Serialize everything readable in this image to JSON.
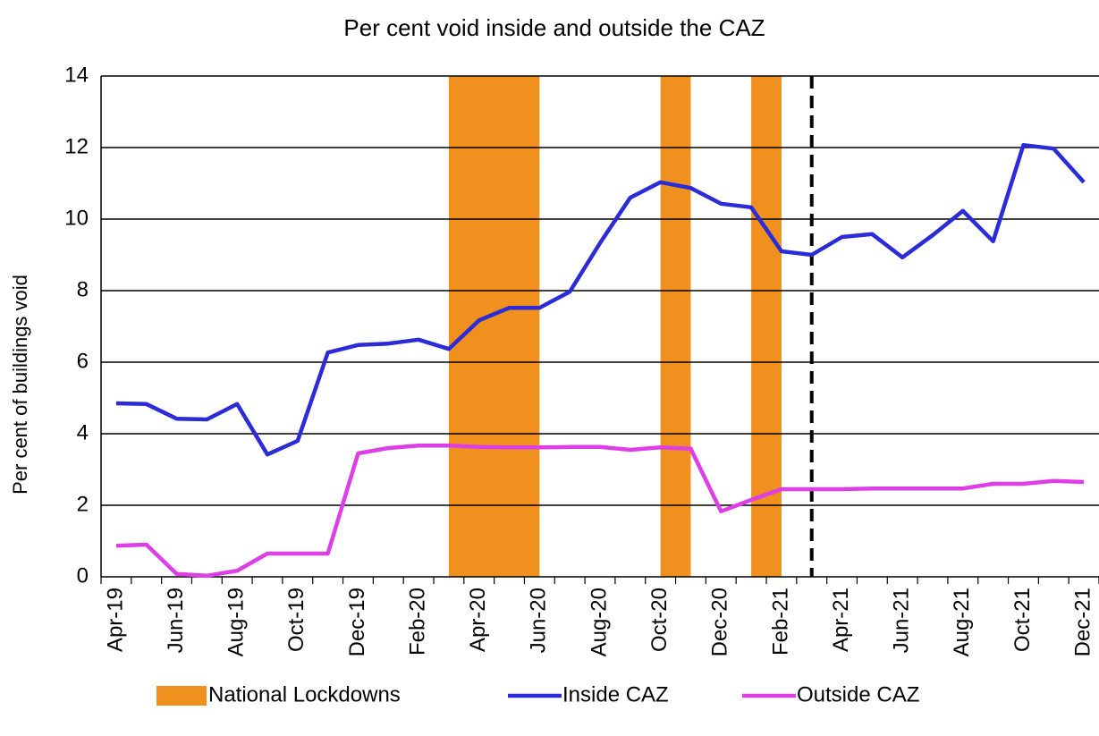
{
  "chart_data": {
    "type": "line",
    "title": "Per cent void inside and outside the CAZ",
    "y_label": "Per cent of buildings void",
    "categories": [
      "Apr-19",
      null,
      "Jun-19",
      null,
      "Aug-19",
      null,
      "Oct-19",
      null,
      "Dec-19",
      null,
      "Feb-20",
      null,
      "Apr-20",
      null,
      "Jun-20",
      null,
      "Aug-20",
      null,
      "Oct-20",
      null,
      "Dec-20",
      null,
      "Feb-21",
      null,
      "Apr-21",
      null,
      "Jun-21",
      null,
      "Aug-21",
      null,
      "Oct-21",
      null,
      "Dec-21"
    ],
    "series": [
      {
        "name": "Inside CAZ",
        "color": "#2b2bd8",
        "values": [
          4.85,
          4.83,
          4.42,
          4.4,
          4.83,
          3.42,
          3.8,
          6.27,
          6.48,
          6.52,
          6.63,
          6.37,
          7.17,
          7.52,
          7.52,
          7.97,
          9.33,
          10.6,
          11.03,
          10.87,
          10.43,
          10.33,
          9.1,
          9.0,
          9.5,
          9.58,
          8.93,
          9.55,
          10.23,
          9.38,
          12.07,
          11.97,
          11.03
        ]
      },
      {
        "name": "Outside CAZ",
        "color": "#dd3ee6",
        "values": [
          0.87,
          0.9,
          0.08,
          0.03,
          0.17,
          0.65,
          0.65,
          0.65,
          3.45,
          3.6,
          3.67,
          3.67,
          3.63,
          3.62,
          3.62,
          3.63,
          3.63,
          3.55,
          3.62,
          3.58,
          1.83,
          2.15,
          2.45,
          2.45,
          2.45,
          2.47,
          2.47,
          2.47,
          2.47,
          2.6,
          2.6,
          2.68,
          2.65
        ]
      }
    ],
    "lockdowns": {
      "name": "National Lockdowns",
      "color": "#f0901e",
      "spans": [
        [
          11,
          14
        ],
        [
          18,
          19
        ],
        [
          21,
          22
        ]
      ]
    },
    "divider_index": 23,
    "ylim": [
      0,
      14
    ],
    "yticks": [
      0,
      2,
      4,
      6,
      8,
      10,
      12,
      14
    ],
    "grid": true
  }
}
